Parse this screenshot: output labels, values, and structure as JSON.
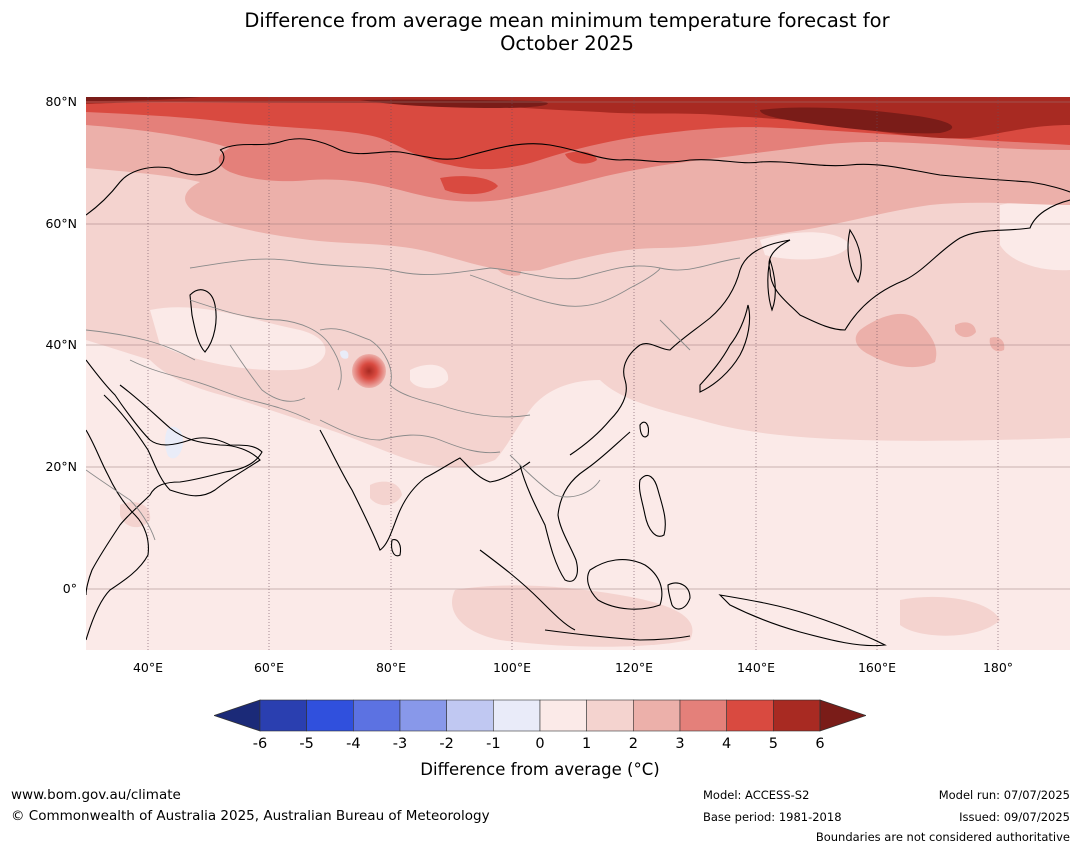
{
  "title": {
    "line1": "Difference from average mean minimum temperature forecast for",
    "line2": "October 2025"
  },
  "map": {
    "lat_labels": [
      "80°N",
      "60°N",
      "40°N",
      "20°N",
      "0°"
    ],
    "lon_labels": [
      "40°E",
      "60°E",
      "80°E",
      "100°E",
      "120°E",
      "140°E",
      "160°E",
      "180°"
    ],
    "colors": {
      "arctic_dark": "#7a1c18",
      "arctic_band": "#a82a22",
      "siberia_hot": "#d94a40",
      "siberia_warm": "#e4807a",
      "mid_warm": "#ecb0aa",
      "light_warm": "#f4d3cf",
      "near_zero": "#fbeae8",
      "slight_cool": "#e9ecf8",
      "coast": "#000000",
      "border": "#8a8a8a"
    }
  },
  "colorbar": {
    "ticks": [
      "-6",
      "-5",
      "-4",
      "-3",
      "-2",
      "-1",
      "0",
      "1",
      "2",
      "3",
      "4",
      "5",
      "6"
    ],
    "colors": [
      "#1b2a78",
      "#2a3fb0",
      "#3050dd",
      "#5c72e2",
      "#8898ea",
      "#c0c8f2",
      "#e9ebf9",
      "#fbeae8",
      "#f4d3cf",
      "#ecb0aa",
      "#e4807a",
      "#d94a40",
      "#a82a22",
      "#7a1c18"
    ],
    "label": "Difference from average (°C)"
  },
  "footer": {
    "website": "www.bom.gov.au/climate",
    "copyright": "© Commonwealth of Australia 2025, Australian Bureau of Meteorology",
    "model": "Model: ACCESS-S2",
    "base_period": "Base period: 1981-2018",
    "model_run": "Model run: 07/07/2025",
    "issued": "Issued: 09/07/2025",
    "disclaimer": "Boundaries are not considered authoritative"
  }
}
